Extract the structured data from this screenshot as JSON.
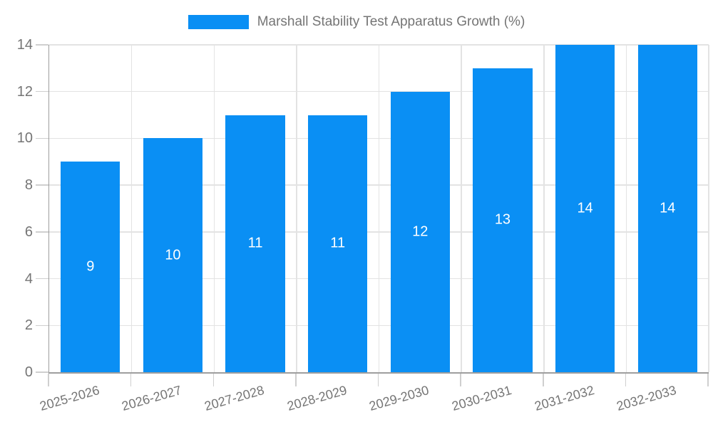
{
  "chart_data": {
    "type": "bar",
    "title": "Marshall Stability Test Apparatus Growth (%)",
    "categories": [
      "2025-2026",
      "2026-2027",
      "2027-2028",
      "2028-2029",
      "2029-2030",
      "2030-2031",
      "2031-2032",
      "2032-2033"
    ],
    "series": [
      {
        "name": "Marshall Stability Test Apparatus Growth (%)",
        "values": [
          9,
          10,
          11,
          11,
          12,
          13,
          14,
          14
        ]
      }
    ],
    "values": [
      9,
      10,
      11,
      11,
      12,
      13,
      14,
      14
    ],
    "xlabel": "",
    "ylabel": "",
    "ylim": [
      0,
      14
    ],
    "yticks": [
      0,
      2,
      4,
      6,
      8,
      10,
      12,
      14
    ],
    "grid": true,
    "legend_position": "top-center",
    "value_labels": "inside-middle"
  },
  "colors": {
    "bar": "#0a8ff4",
    "legend_text": "#757575",
    "axis_text": "#757575",
    "value_label": "#ffffff",
    "grid_line": "#e3e3e3",
    "axis_line": "#9e9e9e",
    "tick_line": "#cfcfcf",
    "background": "#ffffff"
  }
}
